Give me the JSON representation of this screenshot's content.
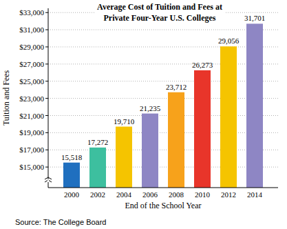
{
  "chart_data": {
    "type": "bar",
    "title": [
      "Average Cost of Tuition and Fees at",
      "Private Four-Year U.S. Colleges"
    ],
    "x_label": "End of the School Year",
    "y_label": "Tuition and Fees",
    "source": "Source: The College Board",
    "categories": [
      "2000",
      "2002",
      "2004",
      "2006",
      "2008",
      "2010",
      "2012",
      "2014"
    ],
    "values": [
      15518,
      17272,
      19710,
      21235,
      23712,
      26273,
      29056,
      31701
    ],
    "value_labels": [
      "15,518",
      "17,272",
      "19,710",
      "21,235",
      "23,712",
      "26,273",
      "29,056",
      "31,701"
    ],
    "colors": [
      "#1f6fbf",
      "#3dbf9f",
      "#f5c400",
      "#8e86c4",
      "#f7a21b",
      "#e8352a",
      "#f5c400",
      "#8e86c4"
    ],
    "data_labels": true,
    "grid": true,
    "ylim": [
      12600,
      33500
    ],
    "yticks": [
      {
        "value": 15000,
        "label": "$15,000"
      },
      {
        "value": 17000,
        "label": "$17,000"
      },
      {
        "value": 19000,
        "label": "$19,000"
      },
      {
        "value": 21000,
        "label": "$21,000"
      },
      {
        "value": 23000,
        "label": "$23,000"
      },
      {
        "value": 25000,
        "label": "$25,000"
      },
      {
        "value": 27000,
        "label": "$27,000"
      },
      {
        "value": 29000,
        "label": "$29,000"
      },
      {
        "value": 31000,
        "label": "$31,000"
      },
      {
        "value": 33000,
        "label": "$33,000"
      }
    ]
  }
}
